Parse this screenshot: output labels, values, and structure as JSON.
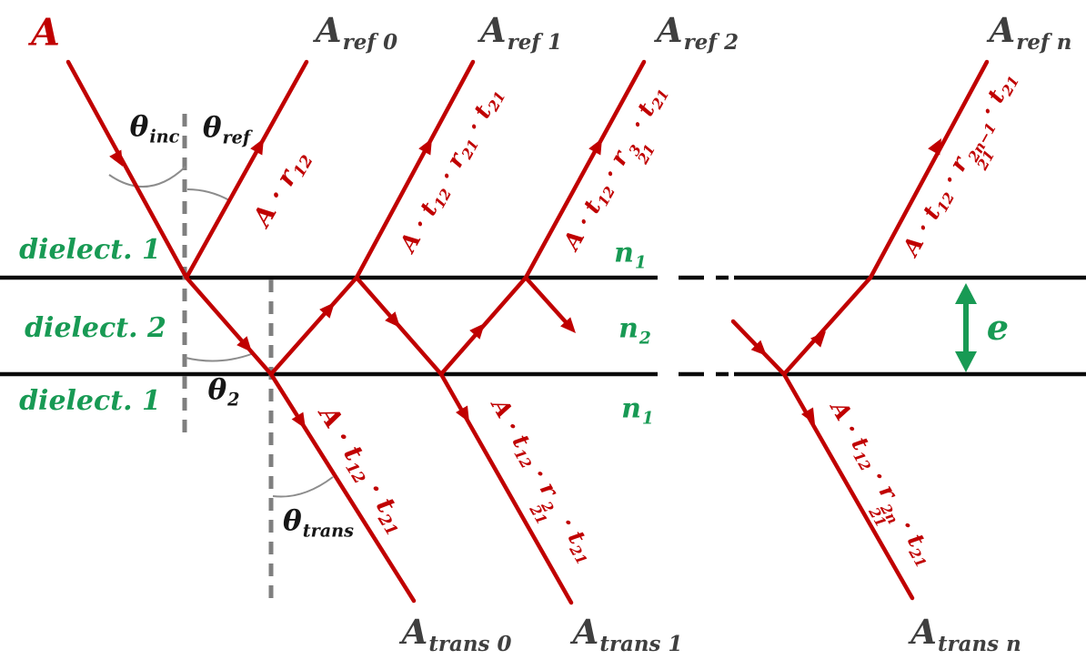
{
  "colors": {
    "ray": "#c00000",
    "gray": "#3f3f3f",
    "green": "#189a54",
    "ink": "#0a0a0a",
    "arc": "#8c8c8c",
    "normal": "#7f7f7f"
  },
  "beams": {
    "incident": "A",
    "reflected": [
      "A_{ref 0}",
      "A_{ref 1}",
      "A_{ref 2}",
      "A_{ref n}"
    ],
    "transmitted": [
      "A_{trans 0}",
      "A_{trans 1}",
      "A_{trans n}"
    ]
  },
  "amplitudes": {
    "ref0": "A · r_{12}",
    "ref1": "A · t_{12} · r_{21} · t_{21}",
    "ref2": "A · t_{12} · r_{21}^{3} · t_{21}",
    "refn": "A · t_{12} · r_{21}^{2n−1} · t_{21}",
    "trans0": "A · t_{12} · t_{21}",
    "trans1": "A · t_{12} · r_{21}^{2} · t_{21}",
    "transn": "A · t_{12} · r_{21}^{2n} · t_{21}"
  },
  "media": {
    "layer1_top": "dielect. 1",
    "layer2": "dielect. 2",
    "layer1_bottom": "dielect. 1",
    "index_top": "n_{1}",
    "index_mid": "n_{2}",
    "index_bottom": "n_{1}",
    "thickness": "e"
  },
  "angles": {
    "incidence": "θ_{inc}",
    "reflection": "θ_{ref}",
    "refraction": "θ_{2}",
    "transmission": "θ_{trans}"
  }
}
